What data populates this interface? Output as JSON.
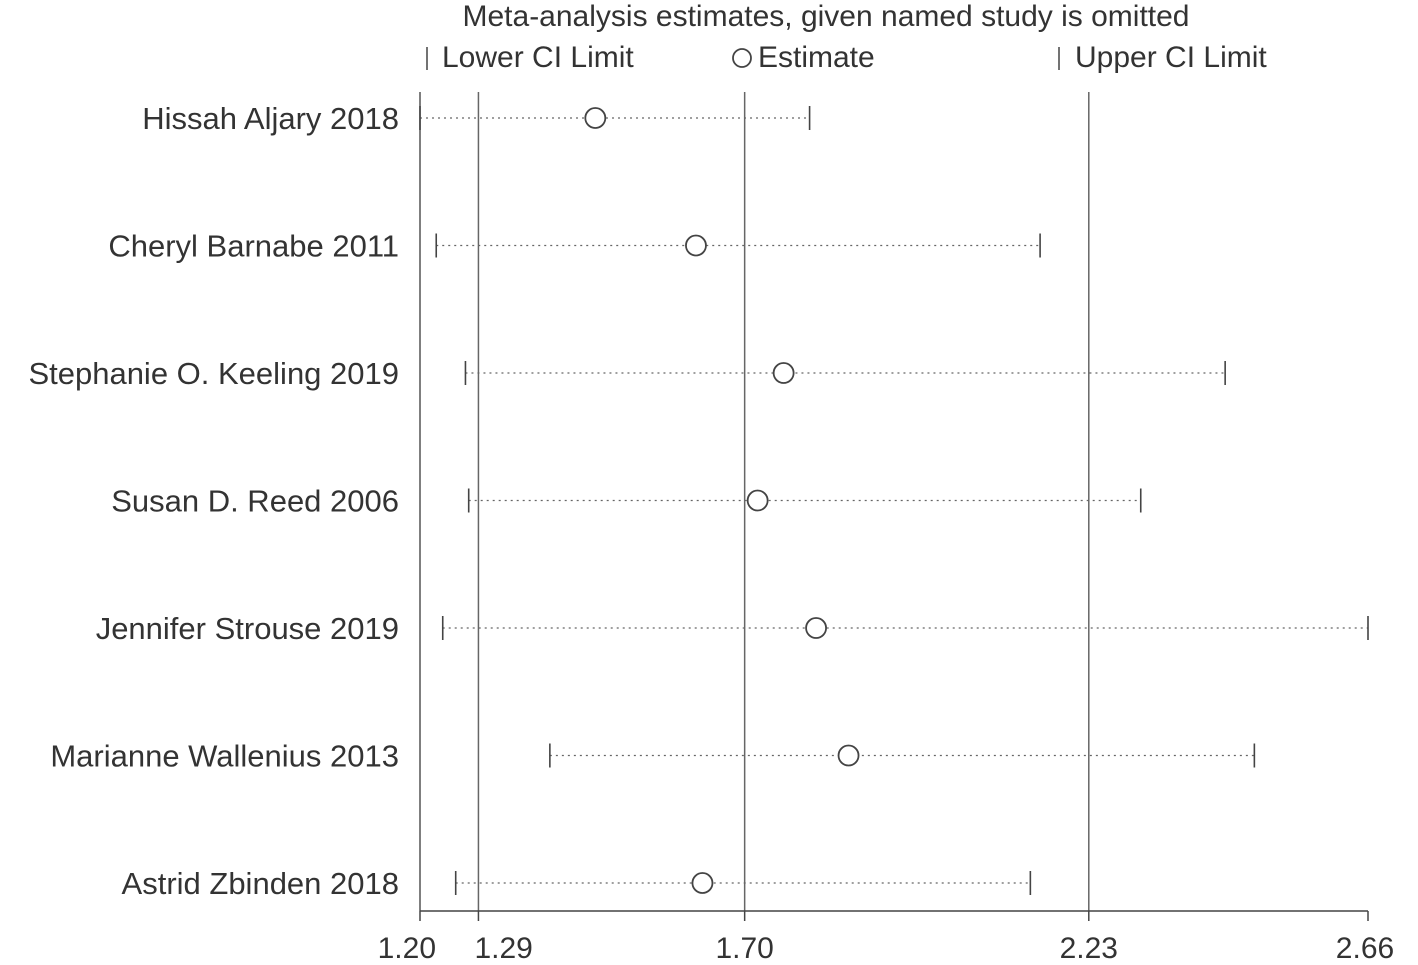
{
  "chart_data": {
    "type": "scatter",
    "title": "Meta-analysis estimates, given named study is omitted",
    "legend": {
      "position": "top",
      "lower": "Lower CI Limit",
      "estimate": "Estimate",
      "upper": "Upper CI Limit"
    },
    "xlim": [
      1.2,
      2.66
    ],
    "x_ticks": [
      {
        "value": 1.2,
        "label": "1.20"
      },
      {
        "value": 1.29,
        "label": "1.29"
      },
      {
        "value": 1.7,
        "label": "1.70"
      },
      {
        "value": 2.23,
        "label": "2.23"
      },
      {
        "value": 2.66,
        "label": "2.66"
      }
    ],
    "reference_lines": [
      1.29,
      1.7,
      2.23
    ],
    "studies": [
      {
        "name": "Hissah Aljary 2018",
        "lower": 1.2,
        "estimate": 1.47,
        "upper": 1.8
      },
      {
        "name": "Cheryl Barnabe 2011",
        "lower": 1.225,
        "estimate": 1.625,
        "upper": 2.155
      },
      {
        "name": "Stephanie O. Keeling 2019",
        "lower": 1.27,
        "estimate": 1.76,
        "upper": 2.44
      },
      {
        "name": "Susan D. Reed 2006",
        "lower": 1.275,
        "estimate": 1.72,
        "upper": 2.31
      },
      {
        "name": "Jennifer Strouse 2019",
        "lower": 1.235,
        "estimate": 1.81,
        "upper": 2.66
      },
      {
        "name": "Marianne Wallenius 2013",
        "lower": 1.4,
        "estimate": 1.86,
        "upper": 2.485
      },
      {
        "name": "Astrid Zbinden 2018",
        "lower": 1.255,
        "estimate": 1.635,
        "upper": 2.14
      }
    ]
  }
}
